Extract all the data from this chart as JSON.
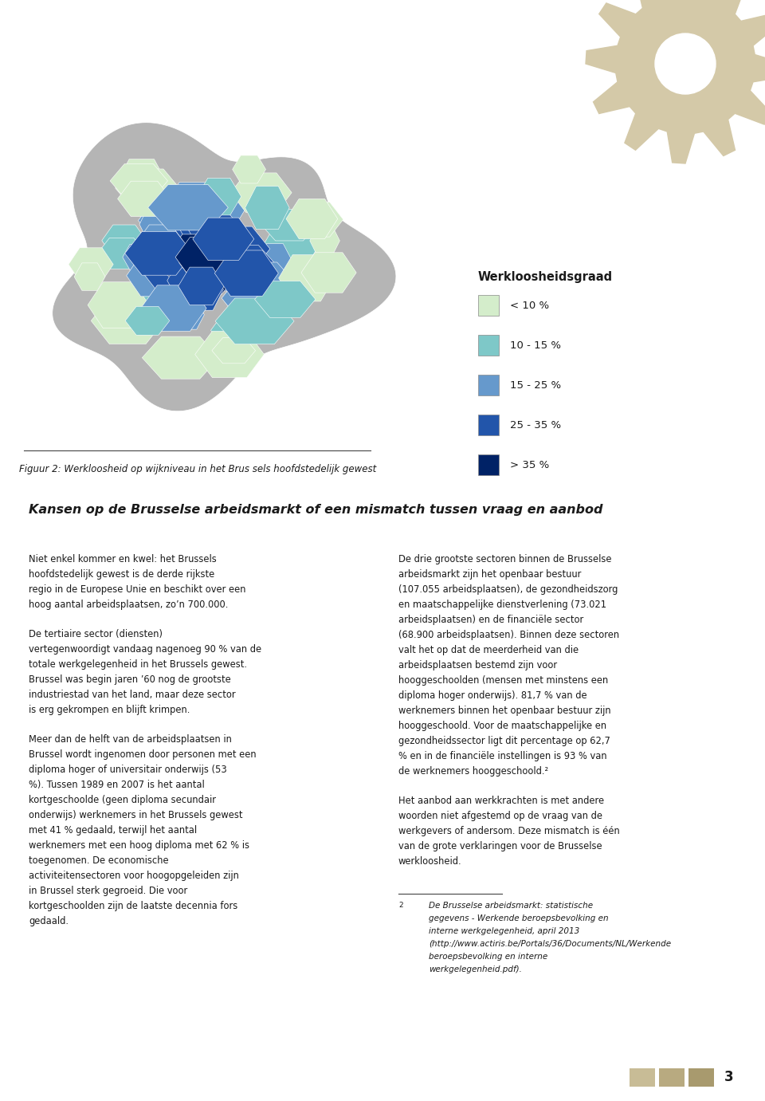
{
  "background_color": "#ffffff",
  "page_number": "3",
  "gear_color": "#d4c9a8",
  "figure_caption": "Figuur 2: Werkloosheid op wijkniveau in het Brus sels hoofdstedelijk gewest",
  "section_title": "Kansen op de Brusselse arbeidsmarkt of een mismatch tussen vraag en aanbod",
  "legend_title": "Werkloosheidsgraad",
  "legend_items": [
    {
      "label": "< 10 %",
      "color": "#d4edcb"
    },
    {
      "label": "10 - 15 %",
      "color": "#7ec8c8"
    },
    {
      "label": "15 - 25 %",
      "color": "#6699cc"
    },
    {
      "label": "25 - 35 %",
      "color": "#2255aa"
    },
    {
      "label": "> 35 %",
      "color": "#002266"
    }
  ],
  "col1_paragraphs": [
    "Niet enkel kommer en kwel: het Brussels hoofdstedelijk gewest is de derde rijkste regio in de Europese Unie en beschikt over een hoog aantal arbeidsplaatsen, zo’n 700.000.",
    "De tertiaire sector (diensten) vertegenwoordigt vandaag nagenoeg 90 % van de totale werkgelegenheid in het Brussels gewest. Brussel was begin jaren ’60 nog de grootste industriestad van het land, maar deze sector is erg gekrompen en blijft krimpen.",
    "Meer dan de helft van de arbeidsplaatsen in Brussel wordt ingenomen door personen met een diploma hoger of universitair onderwijs (53 %). Tussen 1989 en 2007 is het aantal kortgeschoolde (geen diploma secundair onderwijs) werknemers in het Brussels gewest met 41 % gedaald, terwijl het aantal werknemers met een hoog diploma met 62 % is toegenomen. De economische activiteitensectoren voor hoogopgeleiden zijn in Brussel sterk gegroeid. Die voor kortgeschoolden zijn de laatste decennia fors gedaald."
  ],
  "col2_paragraphs": [
    "De drie grootste sectoren binnen de Brusselse arbeidsmarkt zijn het openbaar bestuur (107.055 arbeidsplaatsen), de gezondheidszorg en maatschappelijke dienstverlening (73.021 arbeidsplaatsen) en de financiële sector (68.900 arbeidsplaatsen). Binnen deze sectoren valt het op dat de meerderheid van die arbeidsplaatsen bestemd zijn voor hooggeschoolden (mensen met minstens een diploma hoger onderwijs). 81,7 % van de werknemers binnen het openbaar bestuur zijn hooggeschoold. Voor de maatschappelijke en gezondheidssector ligt dit percentage op 62,7 % en in de financiële instellingen is 93 % van de werknemers hooggeschoold.²",
    "Het aanbod aan werkkrachten is met andere woorden niet afgestemd op de vraag van de werkgevers of andersom. Deze mismatch is één van de grote verklaringen voor de Brusselse werkloosheid."
  ],
  "footnote_number": "2",
  "footnote_italic": "De Brusselse arbeidsmarkt: statistische gegevens - Werkende beroepsbevolking en interne werkgelegenheid,",
  "footnote_bold": "april 2013",
  "footnote_normal": "(http://www.actiris.be/Portals/36/Documents/NL/Werkende beroepsbevolking en interne werkgelegenheid.pdf).",
  "square_colors": [
    "#c8bc96",
    "#b8aa80",
    "#a89a6e"
  ],
  "text_color": "#1a1a1a"
}
